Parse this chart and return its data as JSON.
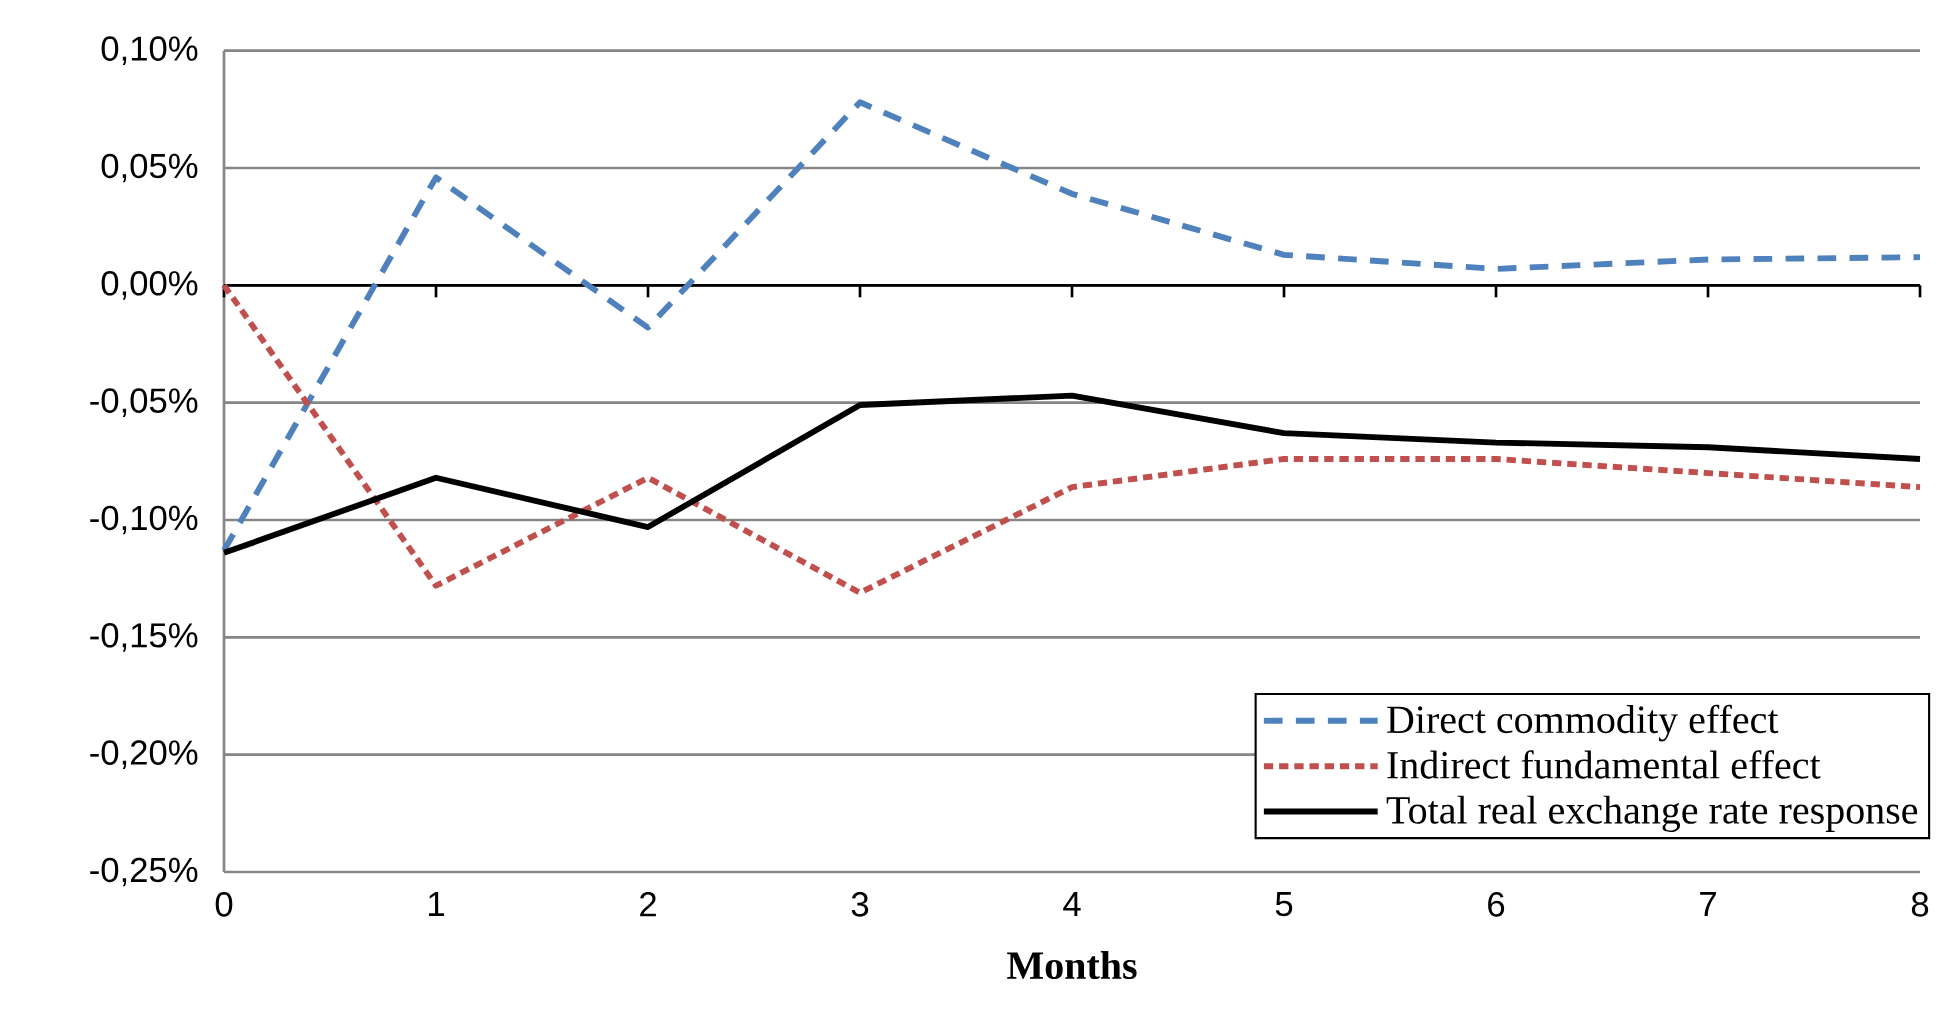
{
  "chart_data": {
    "type": "line",
    "xlabel": "Months",
    "x": [
      0,
      1,
      2,
      3,
      4,
      5,
      6,
      7,
      8
    ],
    "xlim": [
      0,
      8
    ],
    "xticks": [
      0,
      1,
      2,
      3,
      4,
      5,
      6,
      7,
      8
    ],
    "ylim": [
      -0.25,
      0.1
    ],
    "yticks": [
      {
        "value": -0.25,
        "label": "-0,25%"
      },
      {
        "value": -0.2,
        "label": "-0,20%"
      },
      {
        "value": -0.15,
        "label": "-0,15%"
      },
      {
        "value": -0.1,
        "label": "-0,10%"
      },
      {
        "value": -0.05,
        "label": "-0,05%"
      },
      {
        "value": 0,
        "label": "0,00%"
      },
      {
        "value": 0.05,
        "label": "0,05%"
      },
      {
        "value": 0.1,
        "label": "0,10%"
      }
    ],
    "grid": "y",
    "legend": "bottom right",
    "series": [
      {
        "name": "Direct commodity effect",
        "color": "#4f81bd",
        "line_style": "dashed",
        "values": [
          -0.113,
          0.046,
          -0.018,
          0.078,
          0.039,
          0.013,
          0.007,
          0.011,
          0.012
        ]
      },
      {
        "name": "Indirect fundamental effect",
        "color": "#c0504d",
        "line_style": "dotted",
        "values": [
          0,
          -0.128,
          -0.082,
          -0.131,
          -0.086,
          -0.074,
          -0.074,
          -0.08,
          -0.086
        ]
      },
      {
        "name": "Total real exchange rate response",
        "color": "#000000",
        "line_style": "solid",
        "values": [
          -0.114,
          -0.082,
          -0.103,
          -0.051,
          -0.047,
          -0.063,
          -0.067,
          -0.069,
          -0.074
        ]
      }
    ]
  }
}
